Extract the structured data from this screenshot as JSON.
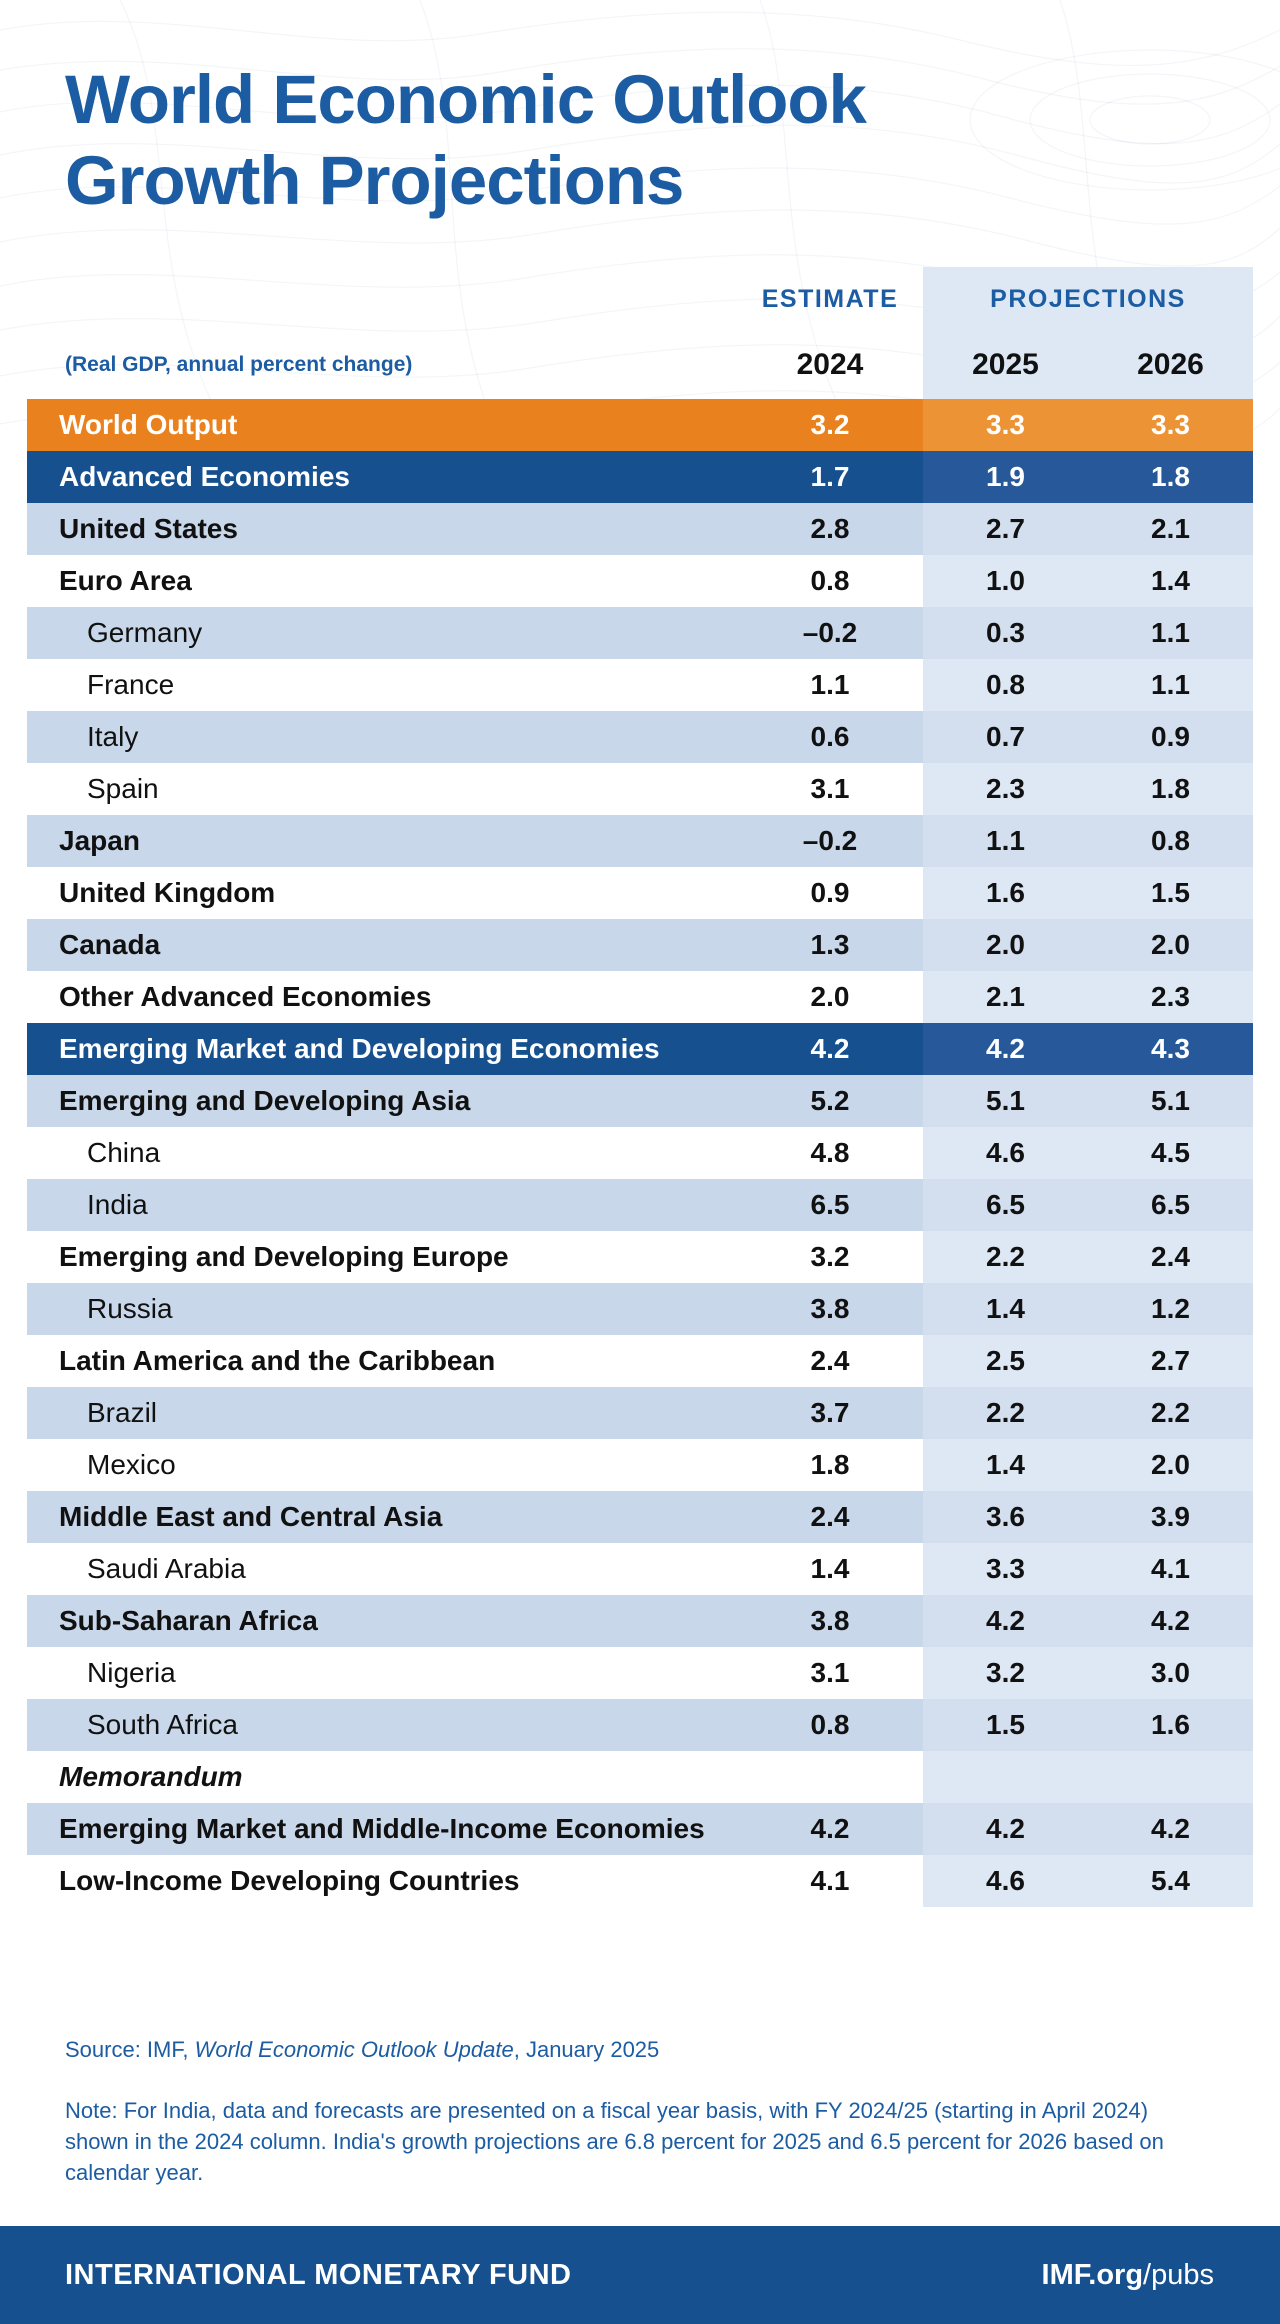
{
  "title": {
    "line1": "World Economic Outlook",
    "line2": "Growth Projections"
  },
  "header": {
    "estimate_label": "ESTIMATE",
    "projections_label": "PROJECTIONS",
    "subtitle": "(Real GDP, annual percent change)"
  },
  "chart_data": {
    "type": "table",
    "title": "World Economic Outlook Growth Projections",
    "unit": "Real GDP, annual percent change",
    "columns": [
      "2024",
      "2025",
      "2026"
    ],
    "column_groups": {
      "estimate": [
        "2024"
      ],
      "projections": [
        "2025",
        "2026"
      ]
    },
    "rows": [
      {
        "name": "World Output",
        "kind": "world",
        "shade": "none",
        "values": [
          "3.2",
          "3.3",
          "3.3"
        ]
      },
      {
        "name": "Advanced Economies",
        "kind": "group",
        "shade": "none",
        "values": [
          "1.7",
          "1.9",
          "1.8"
        ]
      },
      {
        "name": "United States",
        "kind": "region",
        "shade": "light",
        "values": [
          "2.8",
          "2.7",
          "2.1"
        ]
      },
      {
        "name": "Euro Area",
        "kind": "region",
        "shade": "white",
        "values": [
          "0.8",
          "1.0",
          "1.4"
        ]
      },
      {
        "name": "Germany",
        "kind": "country",
        "shade": "light",
        "values": [
          "–0.2",
          "0.3",
          "1.1"
        ]
      },
      {
        "name": "France",
        "kind": "country",
        "shade": "white",
        "values": [
          "1.1",
          "0.8",
          "1.1"
        ]
      },
      {
        "name": "Italy",
        "kind": "country",
        "shade": "light",
        "values": [
          "0.6",
          "0.7",
          "0.9"
        ]
      },
      {
        "name": "Spain",
        "kind": "country",
        "shade": "white",
        "values": [
          "3.1",
          "2.3",
          "1.8"
        ]
      },
      {
        "name": "Japan",
        "kind": "region",
        "shade": "light",
        "values": [
          "–0.2",
          "1.1",
          "0.8"
        ]
      },
      {
        "name": "United Kingdom",
        "kind": "region",
        "shade": "white",
        "values": [
          "0.9",
          "1.6",
          "1.5"
        ]
      },
      {
        "name": "Canada",
        "kind": "region",
        "shade": "light",
        "values": [
          "1.3",
          "2.0",
          "2.0"
        ]
      },
      {
        "name": "Other Advanced Economies",
        "kind": "region",
        "shade": "white",
        "values": [
          "2.0",
          "2.1",
          "2.3"
        ]
      },
      {
        "name": "Emerging Market and Developing Economies",
        "kind": "group",
        "shade": "none",
        "values": [
          "4.2",
          "4.2",
          "4.3"
        ]
      },
      {
        "name": "Emerging and Developing Asia",
        "kind": "region",
        "shade": "light",
        "values": [
          "5.2",
          "5.1",
          "5.1"
        ]
      },
      {
        "name": "China",
        "kind": "country",
        "shade": "white",
        "values": [
          "4.8",
          "4.6",
          "4.5"
        ]
      },
      {
        "name": "India",
        "kind": "country",
        "shade": "light",
        "values": [
          "6.5",
          "6.5",
          "6.5"
        ]
      },
      {
        "name": "Emerging and Developing Europe",
        "kind": "region",
        "shade": "white",
        "values": [
          "3.2",
          "2.2",
          "2.4"
        ]
      },
      {
        "name": "Russia",
        "kind": "country",
        "shade": "light",
        "values": [
          "3.8",
          "1.4",
          "1.2"
        ]
      },
      {
        "name": "Latin America and the Caribbean",
        "kind": "region",
        "shade": "white",
        "values": [
          "2.4",
          "2.5",
          "2.7"
        ]
      },
      {
        "name": "Brazil",
        "kind": "country",
        "shade": "light",
        "values": [
          "3.7",
          "2.2",
          "2.2"
        ]
      },
      {
        "name": "Mexico",
        "kind": "country",
        "shade": "white",
        "values": [
          "1.8",
          "1.4",
          "2.0"
        ]
      },
      {
        "name": "Middle East and Central Asia",
        "kind": "region",
        "shade": "light",
        "values": [
          "2.4",
          "3.6",
          "3.9"
        ]
      },
      {
        "name": "Saudi Arabia",
        "kind": "country",
        "shade": "white",
        "values": [
          "1.4",
          "3.3",
          "4.1"
        ]
      },
      {
        "name": "Sub-Saharan Africa",
        "kind": "region",
        "shade": "light",
        "values": [
          "3.8",
          "4.2",
          "4.2"
        ]
      },
      {
        "name": "Nigeria",
        "kind": "country",
        "shade": "white",
        "values": [
          "3.1",
          "3.2",
          "3.0"
        ]
      },
      {
        "name": "South Africa",
        "kind": "country",
        "shade": "light",
        "values": [
          "0.8",
          "1.5",
          "1.6"
        ]
      },
      {
        "name": "Memorandum",
        "kind": "memo",
        "shade": "white",
        "values": [
          "",
          "",
          ""
        ]
      },
      {
        "name": "Emerging Market and Middle-Income Economies",
        "kind": "region",
        "shade": "light",
        "values": [
          "4.2",
          "4.2",
          "4.2"
        ]
      },
      {
        "name": "Low-Income Developing Countries",
        "kind": "region",
        "shade": "white",
        "values": [
          "4.1",
          "4.6",
          "5.4"
        ]
      }
    ]
  },
  "footnotes": {
    "source_prefix": "Source: IMF, ",
    "source_italic": "World Economic Outlook Update",
    "source_suffix": ", January 2025",
    "note": "Note: For India, data and forecasts are presented on a fiscal year basis, with FY 2024/25 (starting in April 2024) shown in the 2024 column. India's growth projections are 6.8 percent for 2025 and 6.5 percent for 2026 based on calendar year."
  },
  "footer": {
    "left": "INTERNATIONAL MONETARY FUND",
    "right_bold": "IMF.org",
    "right_regular": "/pubs"
  },
  "colors": {
    "imf_blue": "#16508f",
    "title_blue": "#1c5ca3",
    "orange": "#e9821e",
    "light_row": "#c8d7ea",
    "projection_band": "#dde8f4"
  }
}
